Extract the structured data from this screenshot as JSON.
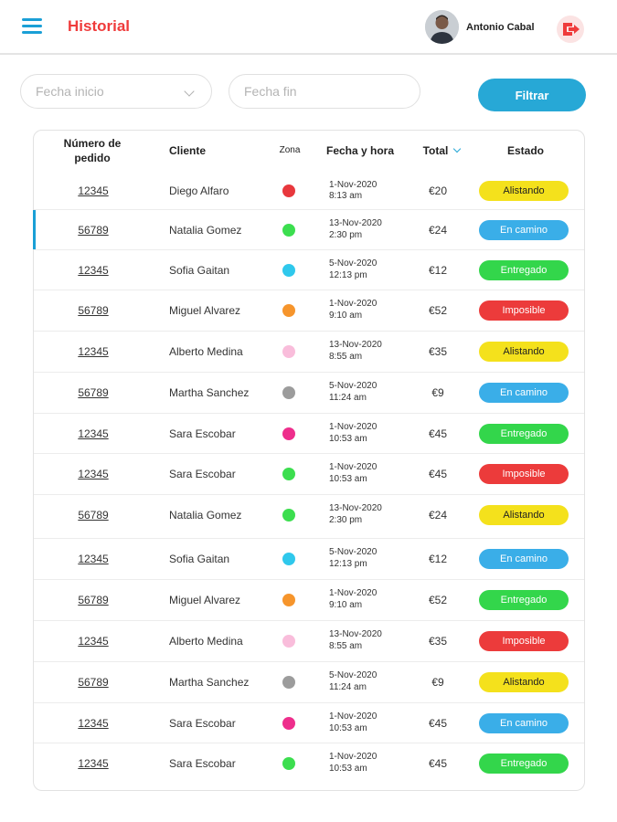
{
  "header": {
    "title": "Historial",
    "user_name": "Antonio Cabal",
    "icons": {
      "menu": "hamburger-menu-icon",
      "avatar": "user-avatar",
      "logout": "logout-icon"
    }
  },
  "filters": {
    "start_date_placeholder": "Fecha inicio",
    "end_date_placeholder": "Fecha fin",
    "filter_button": "Filtrar"
  },
  "colors": {
    "brand_red": "#ef3b3b",
    "accent_blue": "#27a8d6",
    "status": {
      "Alistando": "#f4e11c",
      "En camino": "#3aaee8",
      "Entregado": "#33d64b",
      "Imposible": "#ec3b3b"
    },
    "zones": {
      "red": "#e8383d",
      "green": "#3cde4f",
      "cyan": "#2fc8ec",
      "orange": "#f6952c",
      "pink": "#f9bddb",
      "gray": "#9c9c9c",
      "magenta": "#ee2e8c"
    }
  },
  "table": {
    "columns": {
      "order": "Número de pedido",
      "client": "Cliente",
      "zone": "Zona",
      "datetime": "Fecha y hora",
      "total": "Total",
      "status": "Estado"
    },
    "rows": [
      {
        "order": "12345",
        "client": "Diego Alfaro",
        "zone": "red",
        "date": "1-Nov-2020",
        "time": "8:13 am",
        "total": "€20",
        "status": "Alistando"
      },
      {
        "order": "56789",
        "client": "Natalia Gomez",
        "zone": "green",
        "date": "13-Nov-2020",
        "time": "2:30 pm",
        "total": "€24",
        "status": "En camino"
      },
      {
        "order": "12345",
        "client": "Sofia Gaitan",
        "zone": "cyan",
        "date": "5-Nov-2020",
        "time": "12:13 pm",
        "total": "€12",
        "status": "Entregado"
      },
      {
        "order": "56789",
        "client": "Miguel Alvarez",
        "zone": "orange",
        "date": "1-Nov-2020",
        "time": "9:10 am",
        "total": "€52",
        "status": "Imposible"
      },
      {
        "order": "12345",
        "client": "Alberto Medina",
        "zone": "pink",
        "date": "13-Nov-2020",
        "time": "8:55 am",
        "total": "€35",
        "status": "Alistando"
      },
      {
        "order": "56789",
        "client": "Martha Sanchez",
        "zone": "gray",
        "date": "5-Nov-2020",
        "time": "11:24 am",
        "total": "€9",
        "status": "En camino"
      },
      {
        "order": "12345",
        "client": "Sara Escobar",
        "zone": "magenta",
        "date": "1-Nov-2020",
        "time": "10:53 am",
        "total": "€45",
        "status": "Entregado"
      },
      {
        "order": "12345",
        "client": "Sara Escobar",
        "zone": "green",
        "date": "1-Nov-2020",
        "time": "10:53 am",
        "total": "€45",
        "status": "Imposible"
      },
      {
        "order": "56789",
        "client": "Natalia Gomez",
        "zone": "green",
        "date": "13-Nov-2020",
        "time": "2:30 pm",
        "total": "€24",
        "status": "Alistando"
      },
      {
        "order": "12345",
        "client": "Sofia Gaitan",
        "zone": "cyan",
        "date": "5-Nov-2020",
        "time": "12:13 pm",
        "total": "€12",
        "status": "En camino"
      },
      {
        "order": "56789",
        "client": "Miguel Alvarez",
        "zone": "orange",
        "date": "1-Nov-2020",
        "time": "9:10 am",
        "total": "€52",
        "status": "Entregado"
      },
      {
        "order": "12345",
        "client": "Alberto Medina",
        "zone": "pink",
        "date": "13-Nov-2020",
        "time": "8:55 am",
        "total": "€35",
        "status": "Imposible"
      },
      {
        "order": "56789",
        "client": "Martha Sanchez",
        "zone": "gray",
        "date": "5-Nov-2020",
        "time": "11:24 am",
        "total": "€9",
        "status": "Alistando"
      },
      {
        "order": "12345",
        "client": "Sara Escobar",
        "zone": "magenta",
        "date": "1-Nov-2020",
        "time": "10:53 am",
        "total": "€45",
        "status": "En camino"
      },
      {
        "order": "12345",
        "client": "Sara Escobar",
        "zone": "green",
        "date": "1-Nov-2020",
        "time": "10:53 am",
        "total": "€45",
        "status": "Entregado"
      }
    ]
  }
}
